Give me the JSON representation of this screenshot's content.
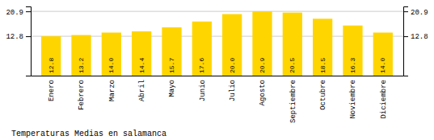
{
  "chart_data": {
    "type": "bar",
    "title": "Temperaturas Medias en salamanca",
    "categories": [
      "Enero",
      "Febrero",
      "Marzo",
      "Abril",
      "Mayo",
      "Junio",
      "Julio",
      "Agosto",
      "Septiembre",
      "Octubre",
      "Noviembre",
      "Diciembre"
    ],
    "values": [
      12.8,
      13.2,
      14.0,
      14.4,
      15.7,
      17.6,
      20.0,
      20.9,
      20.5,
      18.5,
      16.3,
      14.0
    ],
    "value_labels": [
      "12.8",
      "13.2",
      "14.0",
      "14.4",
      "15.7",
      "17.6",
      "20.0",
      "20.9",
      "20.5",
      "18.5",
      "16.3",
      "14.0"
    ],
    "data_labels": true,
    "color": "#FFD500",
    "ylim": [
      0.0,
      22.5
    ],
    "yticks": [
      12.8,
      20.9
    ],
    "y2lim": [
      0.0,
      22.5
    ],
    "y2ticks": [
      12.8,
      20.9
    ],
    "grid": true
  }
}
